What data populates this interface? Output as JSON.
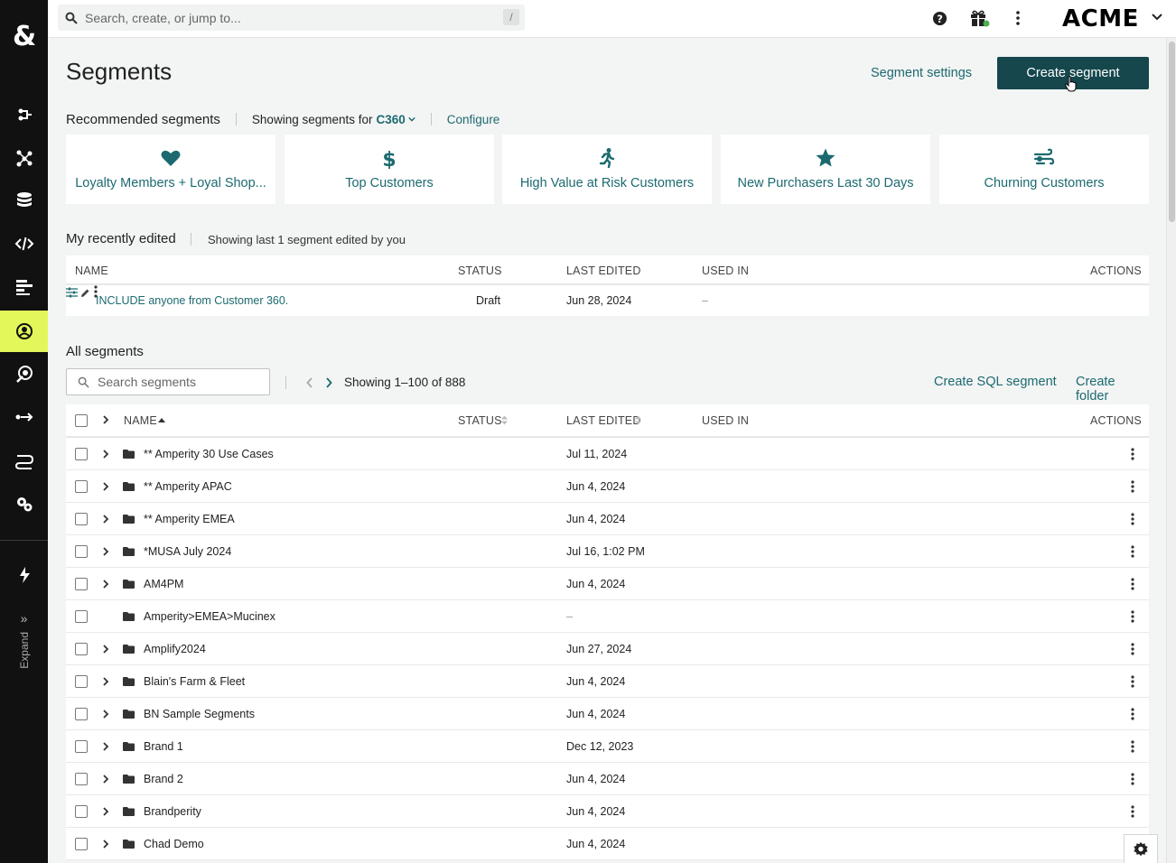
{
  "topbar": {
    "search_placeholder": "Search, create, or jump to...",
    "search_shortcut": "/",
    "brand": "ACME"
  },
  "rail": {
    "expand_label": "Expand",
    "active_color": "#e4f75a"
  },
  "page": {
    "title": "Segments",
    "segment_settings": "Segment settings",
    "create_segment": "Create segment"
  },
  "recommended": {
    "heading": "Recommended segments",
    "showing_prefix": "Showing segments for",
    "db": "C360",
    "configure": "Configure",
    "cards": [
      {
        "label": "Loyalty Members + Loyal Shop...",
        "icon": "heart-icon"
      },
      {
        "label": "Top Customers",
        "icon": "dollar-icon"
      },
      {
        "label": "High Value at Risk Customers",
        "icon": "running-person-icon"
      },
      {
        "label": "New Purchasers Last 30 Days",
        "icon": "star-icon"
      },
      {
        "label": "Churning Customers",
        "icon": "wind-icon"
      }
    ]
  },
  "recent": {
    "heading": "My recently edited",
    "sub": "Showing last 1 segment edited by you",
    "columns": {
      "name": "NAME",
      "status": "STATUS",
      "last_edited": "LAST EDITED",
      "used_in": "USED IN",
      "actions": "ACTIONS"
    },
    "rows": [
      {
        "name": "INCLUDE anyone from Customer 360.",
        "status": "Draft",
        "last_edited": "Jun 28, 2024",
        "used_in": "–"
      }
    ]
  },
  "all": {
    "heading": "All segments",
    "search_placeholder": "Search segments",
    "showing": "Showing 1–100 of 888",
    "create_sql": "Create SQL segment",
    "create_folder": "Create folder",
    "columns": {
      "name": "NAME",
      "status": "STATUS",
      "last_edited": "LAST EDITED",
      "used_in": "USED IN",
      "actions": "ACTIONS"
    },
    "rows": [
      {
        "name": "** Amperity 30 Use Cases",
        "last_edited": "Jul 11, 2024"
      },
      {
        "name": "** Amperity APAC",
        "last_edited": "Jun 4, 2024"
      },
      {
        "name": "** Amperity EMEA",
        "last_edited": "Jun 4, 2024"
      },
      {
        "name": "*MUSA July 2024",
        "last_edited": "Jul 16, 1:02 PM"
      },
      {
        "name": "AM4PM",
        "last_edited": "Jun 4, 2024"
      },
      {
        "name": "Amperity>EMEA>Mucinex",
        "last_edited": "–"
      },
      {
        "name": "Amplify2024",
        "last_edited": "Jun 27, 2024"
      },
      {
        "name": "Blain's Farm & Fleet",
        "last_edited": "Jun 4, 2024"
      },
      {
        "name": "BN Sample Segments",
        "last_edited": "Jun 4, 2024"
      },
      {
        "name": "Brand 1",
        "last_edited": "Dec 12, 2023"
      },
      {
        "name": "Brand 2",
        "last_edited": "Jun 4, 2024"
      },
      {
        "name": "Brandperity",
        "last_edited": "Jun 4, 2024"
      },
      {
        "name": "Chad Demo",
        "last_edited": "Jun 4, 2024"
      }
    ]
  },
  "colors": {
    "accent": "#1c6a70",
    "primary_button": "#15474d",
    "rail": "#111111"
  }
}
